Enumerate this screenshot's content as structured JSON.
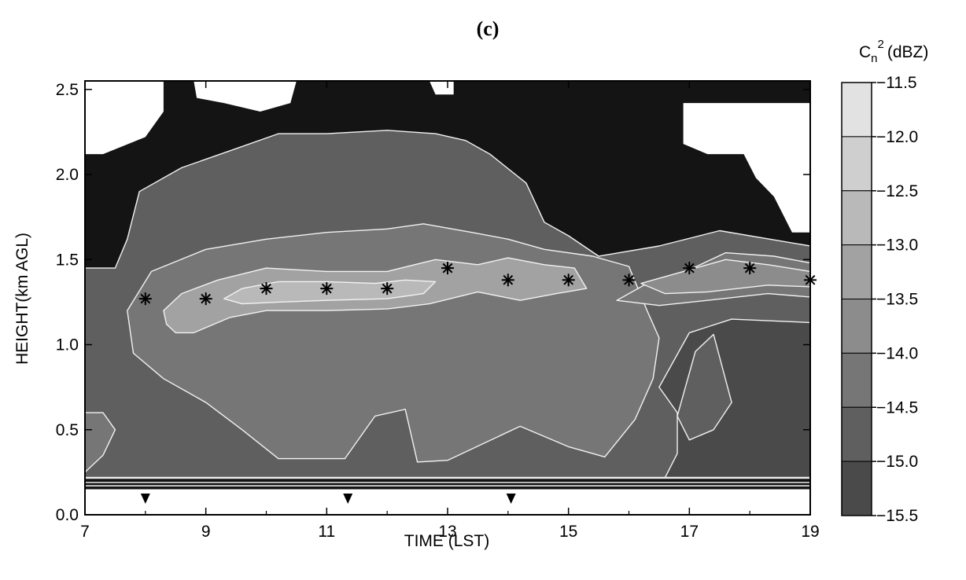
{
  "panel_label": "(c)",
  "colorbar": {
    "title_main": "C",
    "title_sub": "n",
    "title_sup": "2",
    "title_unit": "(dBZ)",
    "levels": [
      "-11.5",
      "-12.0",
      "-12.5",
      "-13.0",
      "-13.5",
      "-14.0",
      "-14.5",
      "-15.0",
      "-15.5"
    ],
    "colors": [
      "#e2e2e2",
      "#cfcfcf",
      "#b9b9b9",
      "#a2a2a2",
      "#8c8c8c",
      "#767676",
      "#5f5f5f",
      "#4a4a4a"
    ]
  },
  "chart_data": {
    "type": "heatmap",
    "xlabel": "TIME (LST)",
    "ylabel": "HEIGHT(km AGL)",
    "xlim": [
      7,
      19
    ],
    "ylim": [
      0,
      2.55
    ],
    "x_ticks": [
      "7",
      "9",
      "11",
      "13",
      "15",
      "17",
      "19"
    ],
    "y_ticks": [
      "0.0",
      "0.5",
      "1.0",
      "1.5",
      "2.0",
      "2.5"
    ],
    "x_tick_values": [
      7,
      9,
      11,
      13,
      15,
      17,
      19
    ],
    "y_tick_values": [
      0.0,
      0.5,
      1.0,
      1.5,
      2.0,
      2.5
    ],
    "star_markers": [
      {
        "x": 8,
        "y": 1.27
      },
      {
        "x": 9,
        "y": 1.27
      },
      {
        "x": 10,
        "y": 1.33
      },
      {
        "x": 11,
        "y": 1.33
      },
      {
        "x": 12,
        "y": 1.33
      },
      {
        "x": 13,
        "y": 1.45
      },
      {
        "x": 14,
        "y": 1.38
      },
      {
        "x": 15,
        "y": 1.38
      },
      {
        "x": 16,
        "y": 1.38
      },
      {
        "x": 17,
        "y": 1.45
      },
      {
        "x": 18,
        "y": 1.45
      },
      {
        "x": 19,
        "y": 1.38
      }
    ],
    "triangle_markers": [
      8.0,
      11.35,
      14.05
    ],
    "bands": [
      {
        "level": "-14.5",
        "points": [
          [
            7,
            0.22
          ],
          [
            19,
            0.22
          ],
          [
            19,
            1.58
          ],
          [
            17.5,
            1.67
          ],
          [
            16.5,
            1.58
          ],
          [
            15.5,
            1.52
          ],
          [
            15,
            1.64
          ],
          [
            14.6,
            1.72
          ],
          [
            14.3,
            1.95
          ],
          [
            13.7,
            2.12
          ],
          [
            13.3,
            2.2
          ],
          [
            12.8,
            2.24
          ],
          [
            12,
            2.26
          ],
          [
            11,
            2.24
          ],
          [
            10.2,
            2.24
          ],
          [
            9.4,
            2.14
          ],
          [
            8.6,
            2.04
          ],
          [
            7.9,
            1.9
          ],
          [
            7.7,
            1.62
          ],
          [
            7.5,
            1.45
          ],
          [
            7,
            1.45
          ]
        ]
      },
      {
        "level": "-14.0",
        "points": [
          [
            7.7,
            1.2
          ],
          [
            8.1,
            1.43
          ],
          [
            9,
            1.56
          ],
          [
            10,
            1.62
          ],
          [
            11,
            1.66
          ],
          [
            12,
            1.68
          ],
          [
            12.6,
            1.71
          ],
          [
            13.4,
            1.66
          ],
          [
            14,
            1.62
          ],
          [
            14.6,
            1.56
          ],
          [
            15.4,
            1.52
          ],
          [
            16,
            1.46
          ],
          [
            16.3,
            1.2
          ],
          [
            16.5,
            1.04
          ],
          [
            16.4,
            0.8
          ],
          [
            16.1,
            0.56
          ],
          [
            15.6,
            0.34
          ],
          [
            15,
            0.4
          ],
          [
            14.2,
            0.52
          ],
          [
            13,
            0.32
          ],
          [
            12.5,
            0.31
          ],
          [
            12.3,
            0.62
          ],
          [
            11.8,
            0.58
          ],
          [
            11.3,
            0.33
          ],
          [
            10.2,
            0.33
          ],
          [
            9.6,
            0.5
          ],
          [
            9,
            0.66
          ],
          [
            8.3,
            0.8
          ],
          [
            7.8,
            0.95
          ]
        ]
      },
      {
        "level": "-13.0",
        "points": [
          [
            8.3,
            1.2
          ],
          [
            8.6,
            1.3
          ],
          [
            9.2,
            1.38
          ],
          [
            10,
            1.45
          ],
          [
            11,
            1.43
          ],
          [
            12,
            1.43
          ],
          [
            12.8,
            1.5
          ],
          [
            13.5,
            1.47
          ],
          [
            14,
            1.51
          ],
          [
            14.6,
            1.47
          ],
          [
            15.1,
            1.45
          ],
          [
            15.3,
            1.33
          ],
          [
            14.8,
            1.3
          ],
          [
            14.2,
            1.26
          ],
          [
            13.5,
            1.31
          ],
          [
            12.7,
            1.24
          ],
          [
            12,
            1.21
          ],
          [
            11,
            1.2
          ],
          [
            10,
            1.2
          ],
          [
            9.4,
            1.16
          ],
          [
            8.8,
            1.07
          ],
          [
            8.5,
            1.07
          ],
          [
            8.35,
            1.12
          ]
        ]
      },
      {
        "level": "-12.5",
        "points": [
          [
            9.3,
            1.27
          ],
          [
            9.6,
            1.33
          ],
          [
            10.2,
            1.37
          ],
          [
            11,
            1.37
          ],
          [
            11.8,
            1.36
          ],
          [
            12.3,
            1.38
          ],
          [
            12.8,
            1.37
          ],
          [
            12.6,
            1.3
          ],
          [
            12,
            1.27
          ],
          [
            11,
            1.26
          ],
          [
            10.2,
            1.25
          ],
          [
            9.6,
            1.24
          ]
        ]
      },
      {
        "level": "-14.0",
        "points": [
          [
            15.8,
            1.26
          ],
          [
            16.3,
            1.36
          ],
          [
            17,
            1.44
          ],
          [
            17.6,
            1.54
          ],
          [
            18.4,
            1.52
          ],
          [
            19,
            1.48
          ],
          [
            19,
            1.28
          ],
          [
            18.3,
            1.3
          ],
          [
            17.3,
            1.26
          ],
          [
            16.5,
            1.23
          ]
        ]
      },
      {
        "level": "-13.5",
        "points": [
          [
            16.2,
            1.36
          ],
          [
            17,
            1.44
          ],
          [
            17.6,
            1.5
          ],
          [
            18.3,
            1.47
          ],
          [
            19,
            1.43
          ],
          [
            19,
            1.34
          ],
          [
            18.3,
            1.35
          ],
          [
            17.3,
            1.31
          ],
          [
            16.6,
            1.3
          ]
        ]
      },
      {
        "level": "-14.0",
        "points": [
          [
            7,
            0.25
          ],
          [
            7.3,
            0.35
          ],
          [
            7.5,
            0.5
          ],
          [
            7.3,
            0.6
          ],
          [
            7,
            0.6
          ]
        ]
      },
      {
        "level": "-15.0",
        "points": [
          [
            16.6,
            0.22
          ],
          [
            19,
            0.22
          ],
          [
            19,
            1.13
          ],
          [
            17.7,
            1.15
          ],
          [
            17,
            1.07
          ],
          [
            16.5,
            0.75
          ],
          [
            16.8,
            0.6
          ],
          [
            16.8,
            0.36
          ]
        ]
      },
      {
        "level": "-14.5",
        "points": [
          [
            16.8,
            0.58
          ],
          [
            17.1,
            0.96
          ],
          [
            17.4,
            1.06
          ],
          [
            17.7,
            0.66
          ],
          [
            17.4,
            0.5
          ],
          [
            17,
            0.44
          ]
        ]
      }
    ],
    "white_regions": [
      [
        [
          7,
          2.55
        ],
        [
          8.3,
          2.55
        ],
        [
          8.3,
          2.37
        ],
        [
          8.0,
          2.22
        ],
        [
          7.3,
          2.12
        ],
        [
          7,
          2.12
        ]
      ],
      [
        [
          8.8,
          2.55
        ],
        [
          10.5,
          2.55
        ],
        [
          10.4,
          2.42
        ],
        [
          9.9,
          2.37
        ],
        [
          9.3,
          2.42
        ],
        [
          8.85,
          2.45
        ]
      ],
      [
        [
          12.7,
          2.55
        ],
        [
          13.1,
          2.55
        ],
        [
          13.1,
          2.47
        ],
        [
          12.8,
          2.47
        ]
      ],
      [
        [
          16.9,
          2.42
        ],
        [
          19,
          2.42
        ],
        [
          19,
          1.66
        ],
        [
          18.7,
          1.66
        ],
        [
          18.4,
          1.87
        ],
        [
          18.1,
          1.98
        ],
        [
          17.9,
          2.12
        ],
        [
          17.3,
          2.12
        ],
        [
          16.9,
          2.18
        ]
      ]
    ]
  }
}
